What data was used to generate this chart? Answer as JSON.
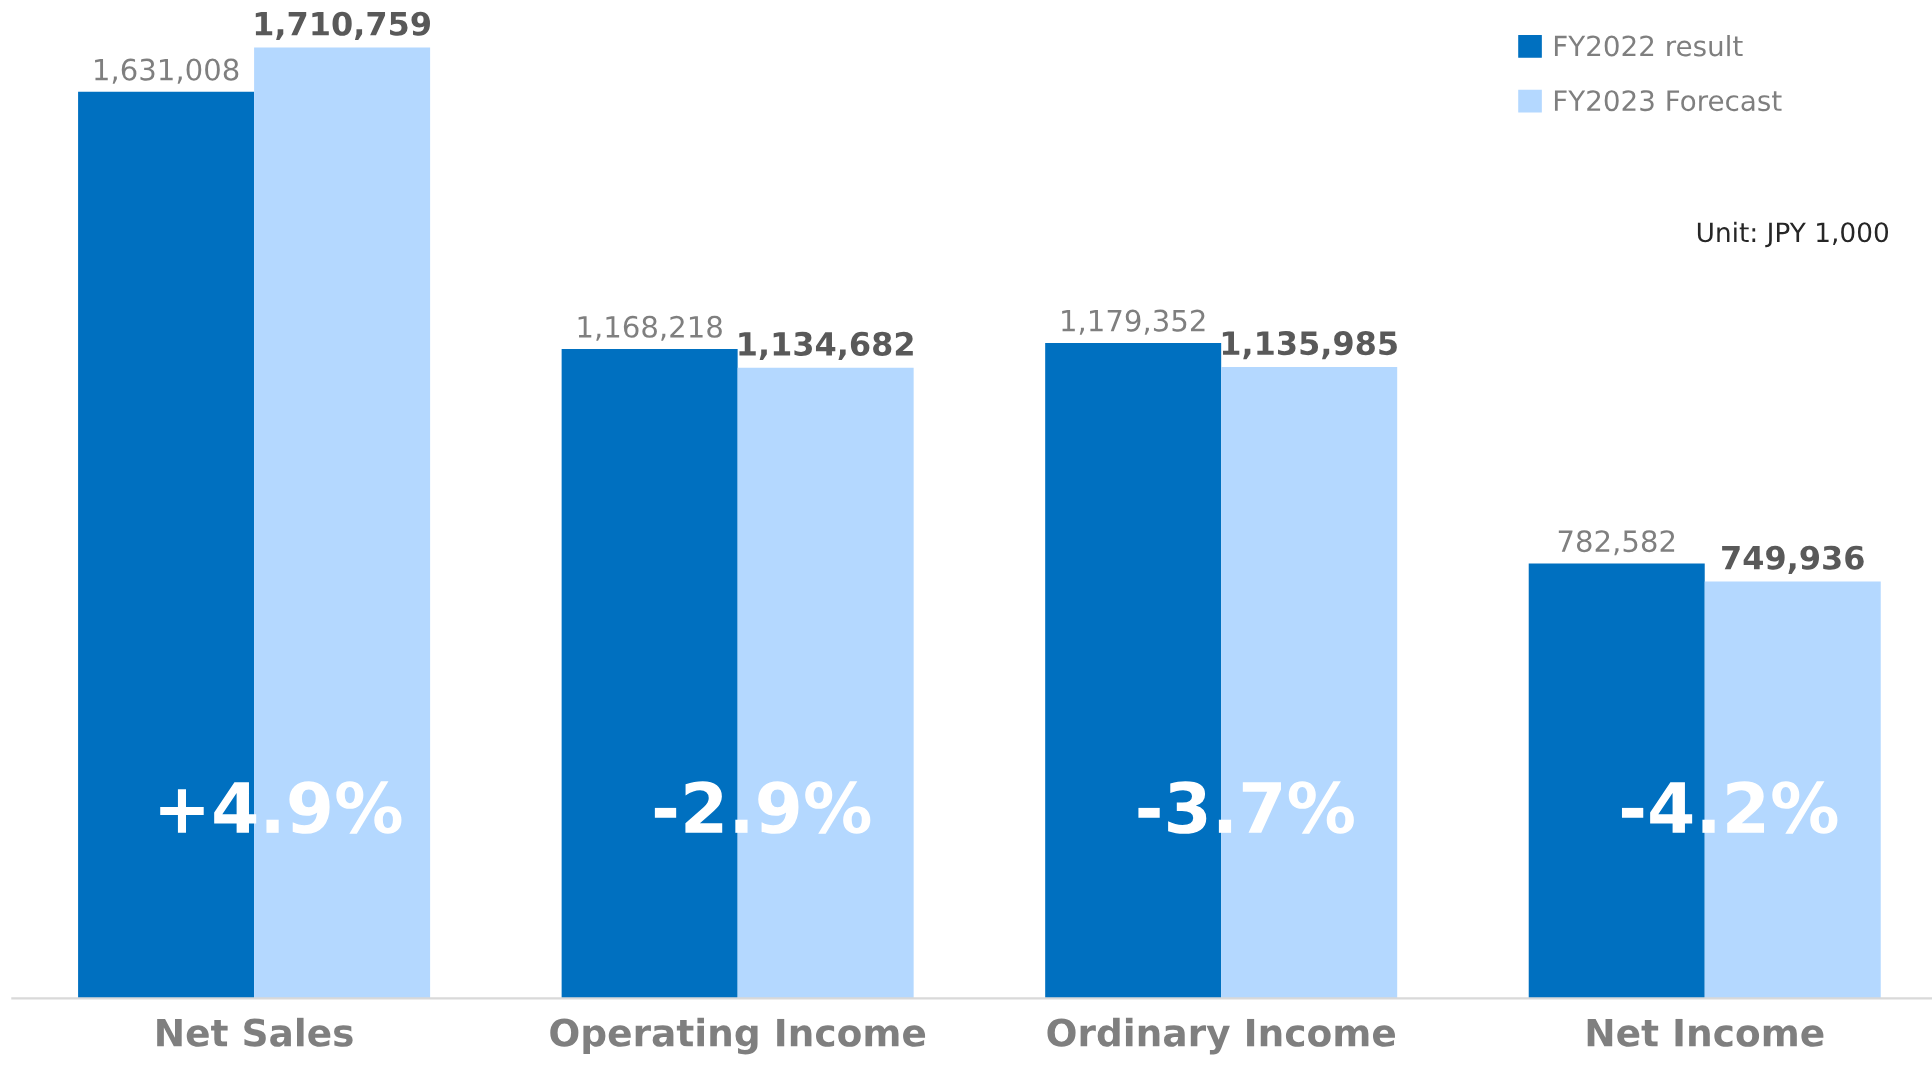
{
  "chart_data": {
    "type": "bar",
    "categories": [
      "Net Sales",
      "Operating Income",
      "Ordinary Income",
      "Net Income"
    ],
    "series": [
      {
        "name": "FY2022 result",
        "color": "#0070c0",
        "values": [
          1631008,
          1168218,
          1179352,
          782582
        ],
        "value_labels": [
          "1,631,008",
          "1,168,218",
          "1,179,352",
          "782,582"
        ]
      },
      {
        "name": "FY2023 Forecast",
        "color": "#b4d8ff",
        "values": [
          1710759,
          1134682,
          1135985,
          749936
        ],
        "value_labels": [
          "1,710,759",
          "1,134,682",
          "1,135,985",
          "749,936"
        ]
      }
    ],
    "annotations": [
      "+4.9%",
      "-2.9%",
      "-3.7%",
      "-4.2%",
      "Unit: JPY 1,000"
    ],
    "legend": "top right",
    "grid": false
  }
}
